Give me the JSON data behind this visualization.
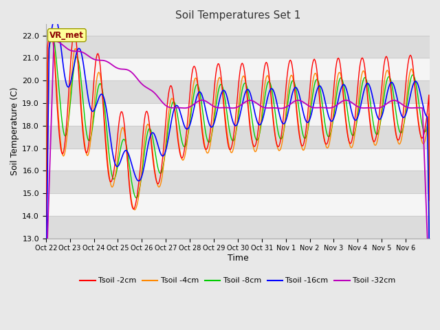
{
  "title": "Soil Temperatures Set 1",
  "xlabel": "Time",
  "ylabel": "Soil Temperature (C)",
  "ylim": [
    13.0,
    22.5
  ],
  "yticks": [
    13.0,
    14.0,
    15.0,
    16.0,
    17.0,
    18.0,
    19.0,
    20.0,
    21.0,
    22.0
  ],
  "x_labels": [
    "Oct 22",
    "Oct 23",
    "Oct 24",
    "Oct 25",
    "Oct 26",
    "Oct 27",
    "Oct 28",
    "Oct 29",
    "Oct 30",
    "Oct 31",
    "Nov 1",
    "Nov 2",
    "Nov 3",
    "Nov 4",
    "Nov 5",
    "Nov 6"
  ],
  "line_colors": {
    "Tsoil -2cm": "#ff0000",
    "Tsoil -4cm": "#ff8800",
    "Tsoil -8cm": "#00cc00",
    "Tsoil -16cm": "#0000ff",
    "Tsoil -32cm": "#bb00bb"
  },
  "annotation": "VR_met",
  "bg_color": "#e8e8e8",
  "band_light": "#f5f5f5",
  "band_dark": "#dcdcdc",
  "n_points": 480,
  "figsize": [
    6.4,
    4.8
  ],
  "dpi": 100
}
